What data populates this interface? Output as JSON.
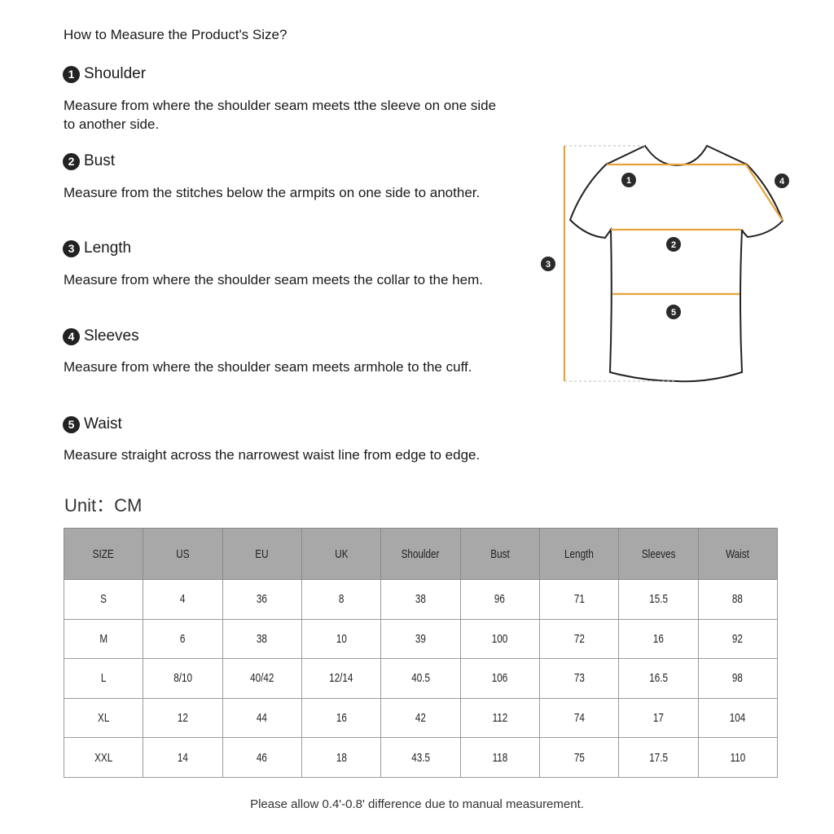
{
  "title": "How to Measure the Product's Size?",
  "sections": [
    {
      "num": "1",
      "heading": "Shoulder",
      "desc": "Measure from where the shoulder seam meets tthe sleeve on one side to another side."
    },
    {
      "num": "2",
      "heading": "Bust",
      "desc": "Measure from the stitches below the armpits on one side to another."
    },
    {
      "num": "3",
      "heading": "Length",
      "desc": "Measure from where the shoulder seam meets the collar to the hem."
    },
    {
      "num": "4",
      "heading": "Sleeves",
      "desc": "Measure from where the shoulder seam meets armhole to the cuff."
    },
    {
      "num": "5",
      "heading": "Waist",
      "desc": "Measure straight across the narrowest waist line from edge to edge."
    }
  ],
  "diagram": {
    "icon": "tshirt-measurement-diagram",
    "line_color": "#e8a23a",
    "markers": [
      "1",
      "2",
      "3",
      "4",
      "5"
    ]
  },
  "unit_label": "Unit：CM",
  "table": {
    "headers": [
      "SIZE",
      "US",
      "EU",
      "UK",
      "Shoulder",
      "Bust",
      "Length",
      "Sleeves",
      "Waist"
    ],
    "rows": [
      [
        "S",
        "4",
        "36",
        "8",
        "38",
        "96",
        "71",
        "15.5",
        "88"
      ],
      [
        "M",
        "6",
        "38",
        "10",
        "39",
        "100",
        "72",
        "16",
        "92"
      ],
      [
        "L",
        "8/10",
        "40/42",
        "12/14",
        "40.5",
        "106",
        "73",
        "16.5",
        "98"
      ],
      [
        "XL",
        "12",
        "44",
        "16",
        "42",
        "112",
        "74",
        "17",
        "104"
      ],
      [
        "XXL",
        "14",
        "46",
        "18",
        "43.5",
        "118",
        "75",
        "17.5",
        "110"
      ]
    ],
    "header_bg": "#a8a8a8"
  },
  "note": "Please allow 0.4'-0.8' difference due to manual measurement."
}
